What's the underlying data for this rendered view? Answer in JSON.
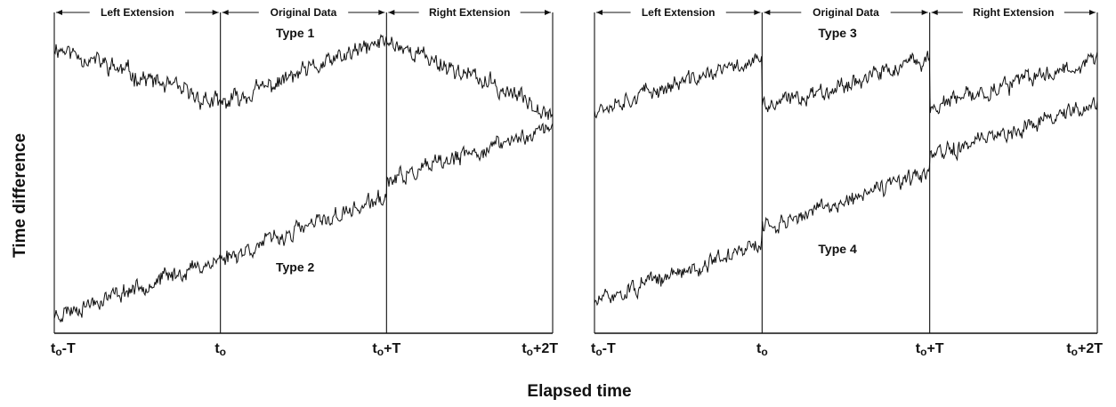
{
  "y_axis_label": "Time  difference",
  "x_axis_label": "Elapsed time",
  "colors": {
    "ink": "#111111",
    "background": "#ffffff"
  },
  "chart_data": [
    {
      "type": "line",
      "panel": "left",
      "regions": [
        "Left Extension",
        "Original Data",
        "Right Extension"
      ],
      "x_ticks": [
        {
          "main": "t",
          "sub": "o",
          "suffix": "-T"
        },
        {
          "main": "t",
          "sub": "o",
          "suffix": ""
        },
        {
          "main": "t",
          "sub": "o",
          "suffix": "+T"
        },
        {
          "main": "t",
          "sub": "o",
          "suffix": "+2T"
        }
      ],
      "xlim": [
        -1,
        2
      ],
      "ylim": [
        0,
        1
      ],
      "series": [
        {
          "label": "Type 1",
          "points": [
            [
              -1,
              0.93
            ],
            [
              0,
              0.74
            ],
            [
              1,
              0.95
            ],
            [
              2,
              0.72
            ]
          ],
          "noise": 0.022,
          "seed": 11
        },
        {
          "label": "Type 2",
          "points": [
            [
              -1,
              0.06
            ],
            [
              0,
              0.24
            ],
            [
              1,
              0.44
            ],
            [
              1.0001,
              0.49
            ],
            [
              2,
              0.67
            ]
          ],
          "noise": 0.02,
          "seed": 23
        }
      ],
      "label_positions": [
        [
          0.45,
          0.96
        ],
        [
          0.45,
          0.2
        ]
      ]
    },
    {
      "type": "line",
      "panel": "right",
      "regions": [
        "Left Extension",
        "Original Data",
        "Right Extension"
      ],
      "x_ticks": [
        {
          "main": "t",
          "sub": "o",
          "suffix": "-T"
        },
        {
          "main": "t",
          "sub": "o",
          "suffix": ""
        },
        {
          "main": "t",
          "sub": "o",
          "suffix": "+T"
        },
        {
          "main": "t",
          "sub": "o",
          "suffix": "+2T"
        }
      ],
      "xlim": [
        -1,
        2
      ],
      "ylim": [
        0,
        1
      ],
      "series": [
        {
          "label": "Type 3",
          "points": [
            [
              -1,
              0.73
            ],
            [
              0,
              0.89
            ],
            [
              0.0001,
              0.73
            ],
            [
              1,
              0.89
            ],
            [
              1.0001,
              0.73
            ],
            [
              2,
              0.89
            ]
          ],
          "noise": 0.02,
          "seed": 37
        },
        {
          "label": "Type 4",
          "points": [
            [
              -1,
              0.1
            ],
            [
              0,
              0.29
            ],
            [
              0.0001,
              0.34
            ],
            [
              1,
              0.52
            ],
            [
              1.0001,
              0.57
            ],
            [
              2,
              0.75
            ]
          ],
          "noise": 0.02,
          "seed": 51
        }
      ],
      "label_positions": [
        [
          0.45,
          0.96
        ],
        [
          0.45,
          0.26
        ]
      ]
    }
  ]
}
